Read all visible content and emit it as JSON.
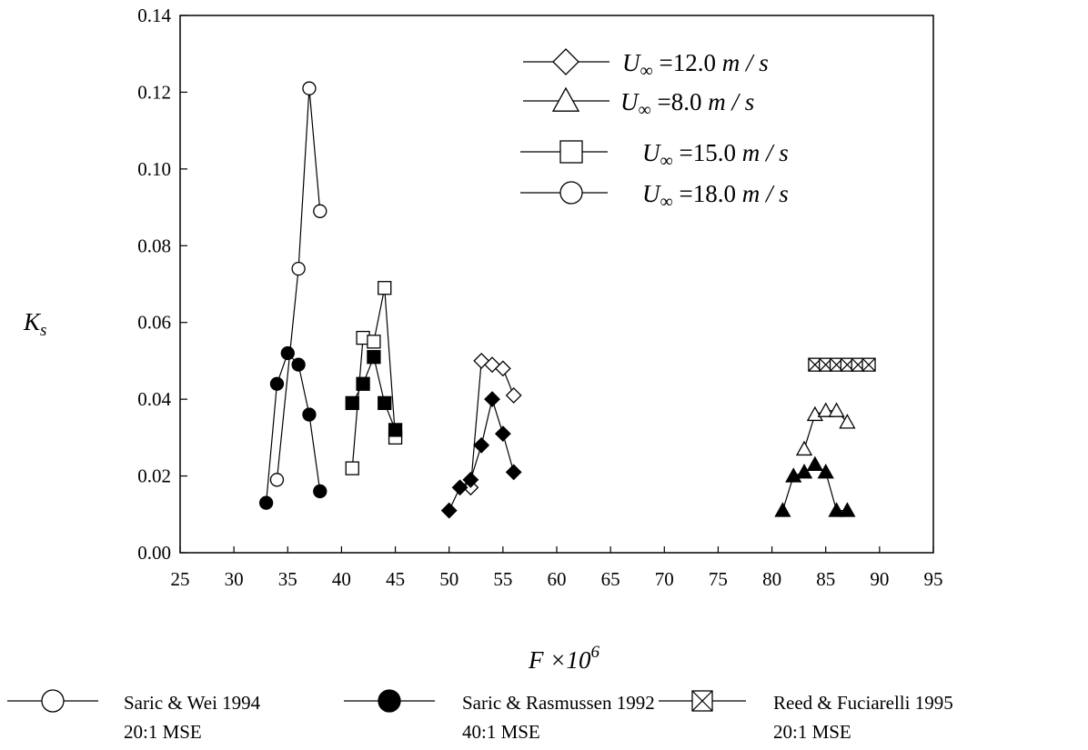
{
  "chart_data": {
    "type": "scatter",
    "xlabel": "F × 10^6",
    "ylabel": "K_s",
    "xlim": [
      25,
      95
    ],
    "ylim": [
      0.0,
      0.14
    ],
    "x_ticks": [
      "25",
      "30",
      "35",
      "40",
      "45",
      "50",
      "55",
      "60",
      "65",
      "70",
      "75",
      "80",
      "85",
      "90",
      "95"
    ],
    "y_ticks": [
      "0.00",
      "0.02",
      "0.04",
      "0.06",
      "0.08",
      "0.10",
      "0.12",
      "0.14"
    ],
    "grid": false,
    "legend_top": [
      {
        "marker": "diamond",
        "velocity": "12.0",
        "label": "U∞ = 12.0 m / s"
      },
      {
        "marker": "triangle",
        "velocity": "8.0",
        "label": "U∞ = 8.0 m / s"
      },
      {
        "marker": "square",
        "velocity": "15.0",
        "label": "U∞ = 15.0 m / s"
      },
      {
        "marker": "circle",
        "velocity": "18.0",
        "label": "U∞ = 18.0 m / s"
      }
    ],
    "legend_bottom": [
      {
        "marker": "open",
        "line1": "Saric & Wei 1994",
        "line2": "20:1 MSE"
      },
      {
        "marker": "filled",
        "line1": "Saric & Rasmussen 1992",
        "line2": "40:1 MSE"
      },
      {
        "marker": "crossed",
        "line1": "Reed & Fuciarelli 1995",
        "line2": "20:1 MSE"
      }
    ],
    "series": [
      {
        "marker": "circle",
        "fill": "open",
        "x": [
          34,
          36,
          37,
          38
        ],
        "y": [
          0.019,
          0.074,
          0.121,
          0.089
        ]
      },
      {
        "marker": "circle",
        "fill": "filled",
        "x": [
          33,
          34,
          35,
          36,
          37,
          38
        ],
        "y": [
          0.013,
          0.044,
          0.052,
          0.049,
          0.036,
          0.016
        ]
      },
      {
        "marker": "square",
        "fill": "open",
        "x": [
          41,
          42,
          43,
          44,
          45
        ],
        "y": [
          0.022,
          0.056,
          0.055,
          0.069,
          0.03
        ]
      },
      {
        "marker": "square",
        "fill": "filled",
        "x": [
          41,
          42,
          43,
          44,
          45
        ],
        "y": [
          0.039,
          0.044,
          0.051,
          0.039,
          0.032
        ]
      },
      {
        "marker": "diamond",
        "fill": "open",
        "x": [
          52,
          53,
          54,
          55,
          56
        ],
        "y": [
          0.017,
          0.05,
          0.049,
          0.048,
          0.041
        ]
      },
      {
        "marker": "diamond",
        "fill": "filled",
        "x": [
          50,
          51,
          52,
          53,
          54,
          55,
          56
        ],
        "y": [
          0.011,
          0.017,
          0.019,
          0.028,
          0.04,
          0.031,
          0.021
        ]
      },
      {
        "marker": "triangle",
        "fill": "open",
        "x": [
          83,
          84,
          85,
          86,
          87
        ],
        "y": [
          0.027,
          0.036,
          0.037,
          0.037,
          0.034
        ]
      },
      {
        "marker": "triangle",
        "fill": "filled",
        "x": [
          81,
          82,
          83,
          84,
          85,
          86,
          87
        ],
        "y": [
          0.011,
          0.02,
          0.021,
          0.023,
          0.021,
          0.011,
          0.011
        ]
      },
      {
        "marker": "square",
        "fill": "crossed",
        "x": [
          84,
          85,
          86,
          87,
          88,
          89
        ],
        "y": [
          0.049,
          0.049,
          0.049,
          0.049,
          0.049,
          0.049
        ]
      }
    ]
  }
}
